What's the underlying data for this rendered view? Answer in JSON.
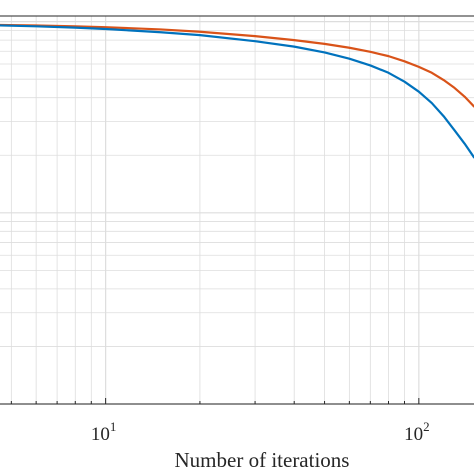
{
  "chart_data": {
    "type": "line",
    "xlabel": "Number of iterations",
    "ylabel": "",
    "title": "",
    "x_scale": "log",
    "y_scale": "log",
    "xlim": [
      4.6,
      150
    ],
    "ylim": [
      0.01,
      1.07
    ],
    "x_ticks": [
      {
        "base": "10",
        "exp": "1",
        "value": 10
      },
      {
        "base": "10",
        "exp": "2",
        "value": 100
      }
    ],
    "grid": true,
    "legend": "none",
    "colors": {
      "series_1": "#D95319",
      "series_2": "#0072BD",
      "grid": "#dddddd",
      "axes": "#262626"
    },
    "series": [
      {
        "color": "#D95319",
        "x": [
          4.6,
          6,
          8,
          10,
          15,
          20,
          30,
          40,
          50,
          60,
          70,
          80,
          90,
          100,
          110,
          120,
          130,
          140,
          150
        ],
        "y": [
          0.96,
          0.955,
          0.945,
          0.935,
          0.91,
          0.885,
          0.84,
          0.8,
          0.765,
          0.73,
          0.695,
          0.66,
          0.62,
          0.58,
          0.54,
          0.495,
          0.45,
          0.405,
          0.36
        ]
      },
      {
        "color": "#0072BD",
        "x": [
          4.6,
          6,
          8,
          10,
          15,
          20,
          30,
          40,
          50,
          60,
          70,
          80,
          90,
          100,
          110,
          120,
          130,
          140,
          150
        ],
        "y": [
          0.955,
          0.945,
          0.93,
          0.915,
          0.88,
          0.85,
          0.79,
          0.74,
          0.69,
          0.64,
          0.59,
          0.54,
          0.485,
          0.43,
          0.375,
          0.32,
          0.27,
          0.23,
          0.195
        ]
      }
    ]
  }
}
